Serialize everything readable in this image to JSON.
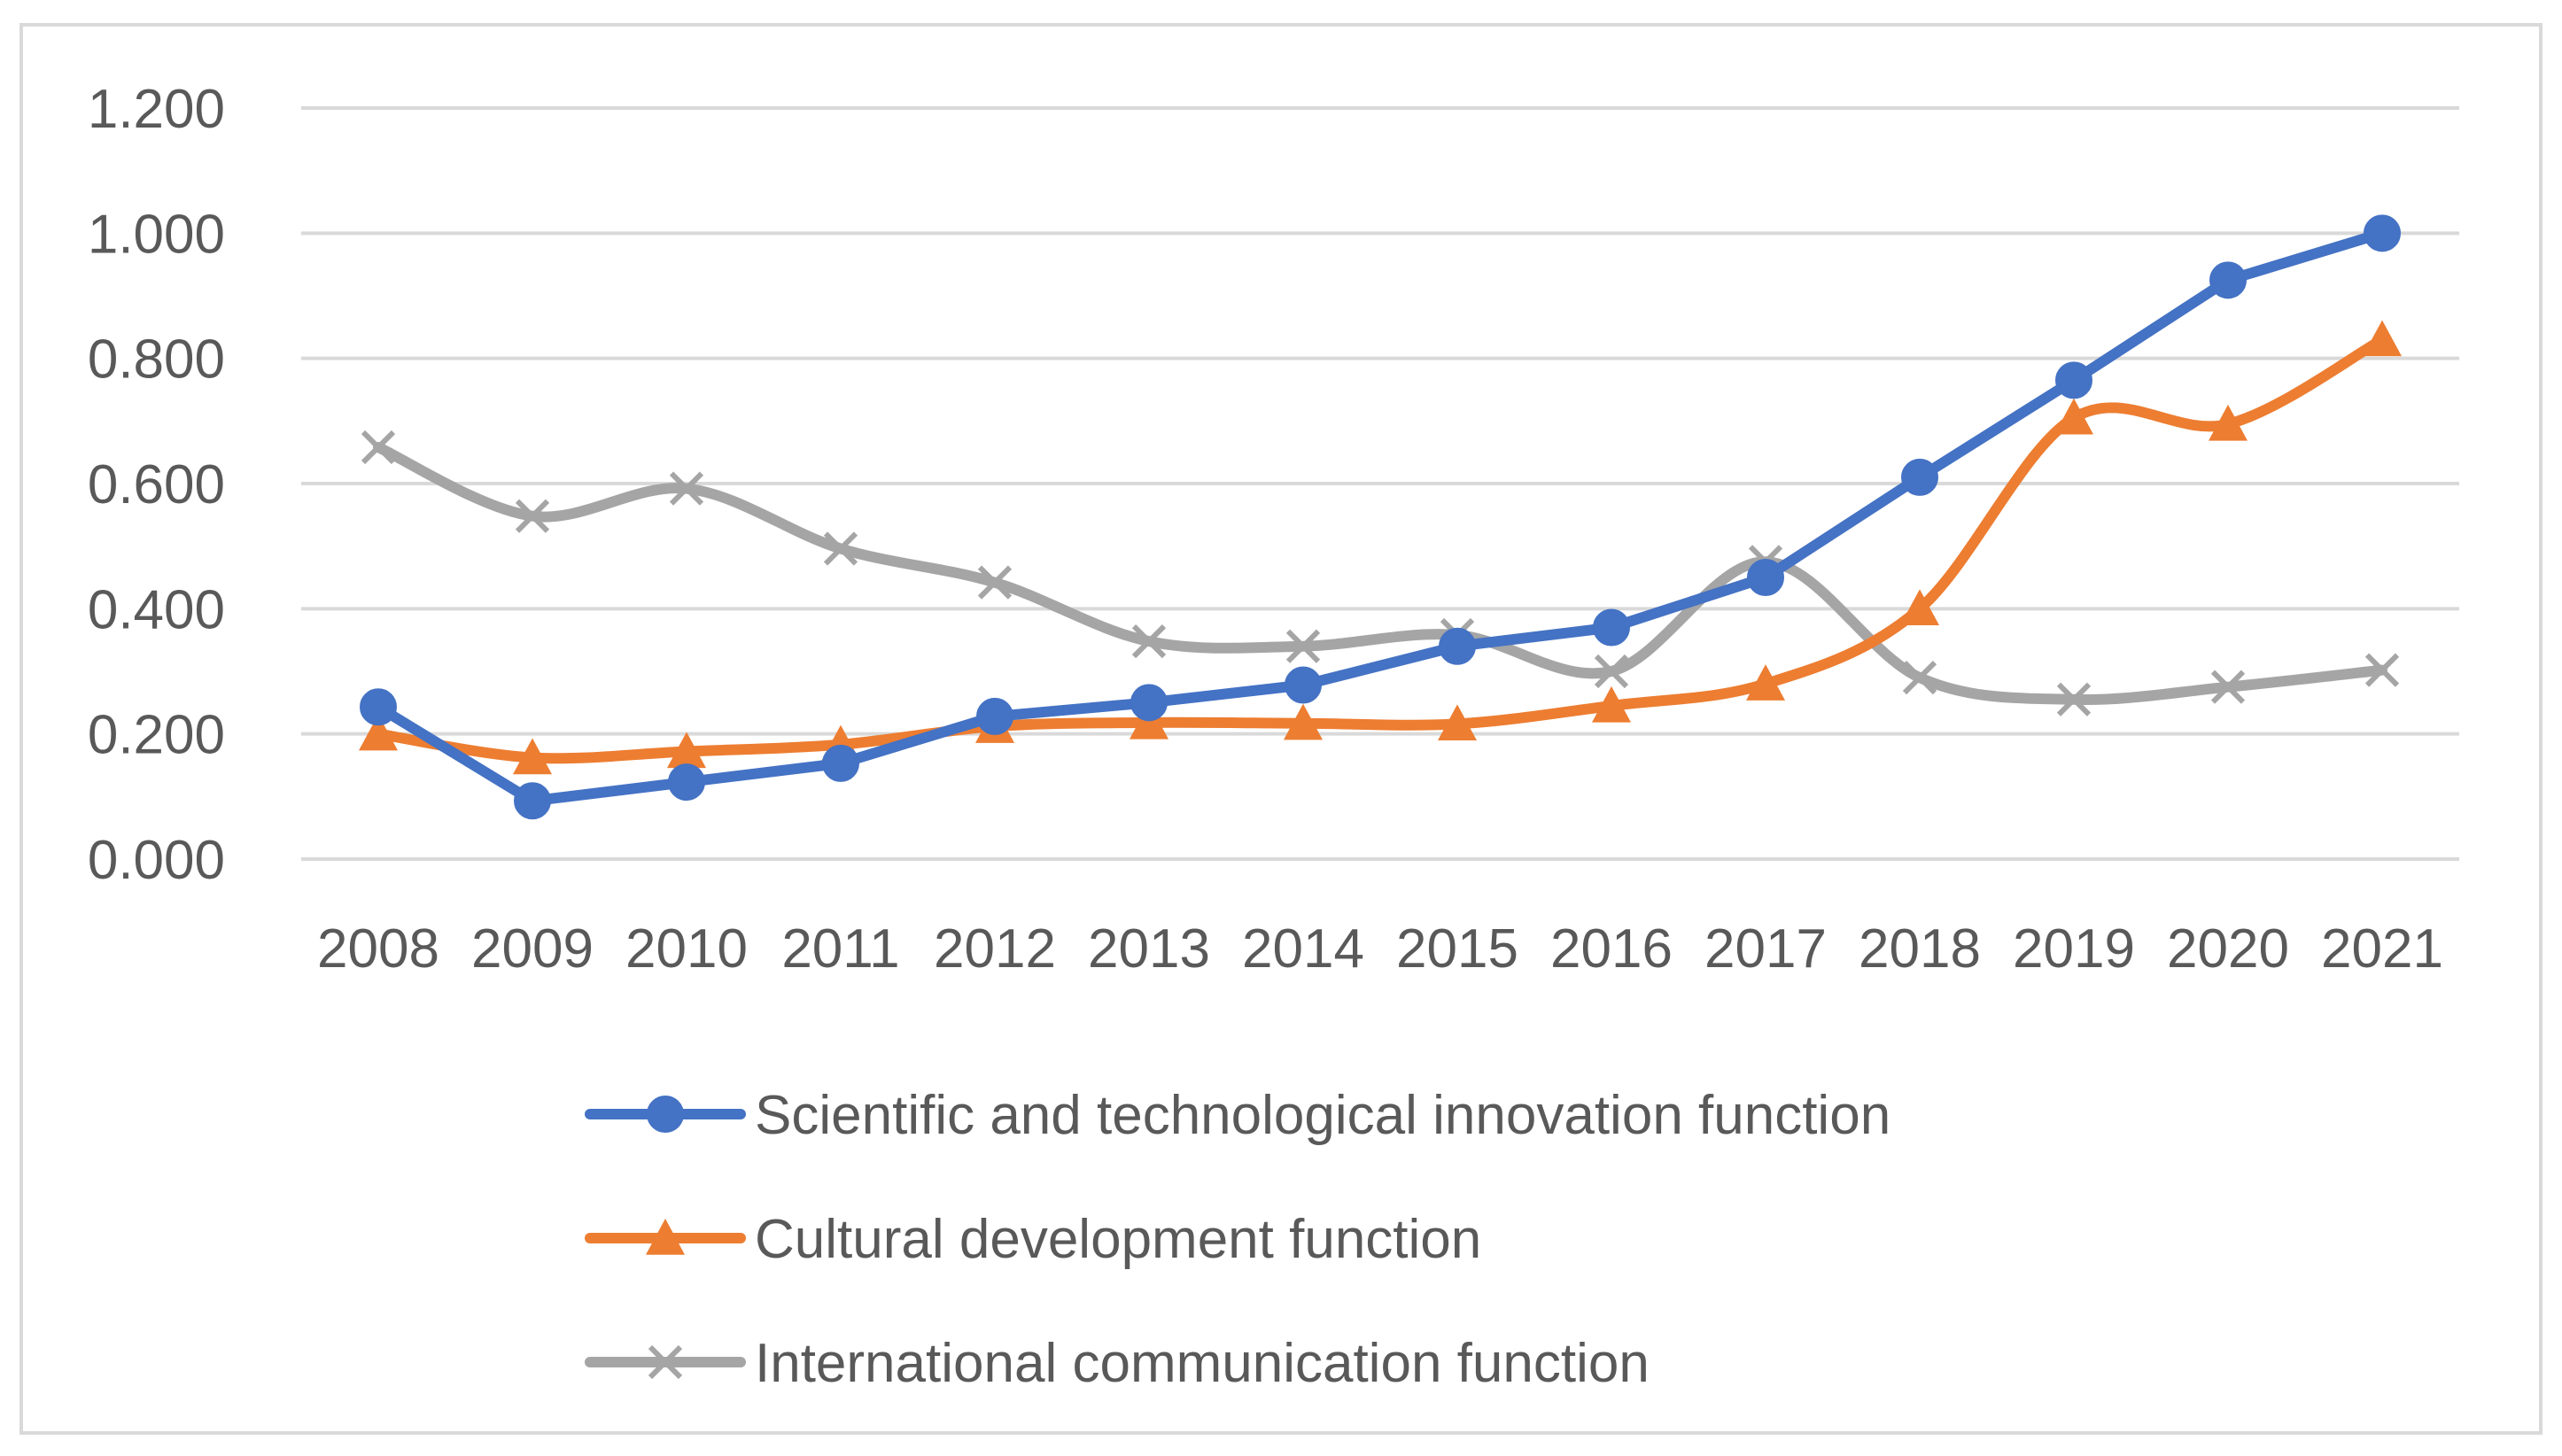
{
  "chart_data": {
    "type": "line",
    "title": "",
    "xlabel": "",
    "ylabel": "",
    "categories": [
      "2008",
      "2009",
      "2010",
      "2011",
      "2012",
      "2013",
      "2014",
      "2015",
      "2016",
      "2017",
      "2018",
      "2019",
      "2020",
      "2021"
    ],
    "ylim": [
      0,
      1.2
    ],
    "yticks": [
      "0.000",
      "0.200",
      "0.400",
      "0.600",
      "0.800",
      "1.000",
      "1.200"
    ],
    "grid": true,
    "legend_position": "bottom",
    "series": [
      {
        "name": "Scientific and technological innovation function",
        "color": "#4472c4",
        "marker": "circle",
        "smooth": false,
        "values": [
          0.243,
          0.093,
          0.123,
          0.153,
          0.228,
          0.25,
          0.278,
          0.34,
          0.37,
          0.45,
          0.61,
          0.765,
          0.925,
          1.0
        ]
      },
      {
        "name": "Cultural development function",
        "color": "#ed7d31",
        "marker": "triangle",
        "smooth": true,
        "values": [
          0.2,
          0.162,
          0.172,
          0.183,
          0.212,
          0.218,
          0.217,
          0.216,
          0.245,
          0.28,
          0.4,
          0.705,
          0.695,
          0.83
        ]
      },
      {
        "name": "International communication function",
        "color": "#a5a5a5",
        "marker": "x",
        "smooth": true,
        "values": [
          0.658,
          0.548,
          0.592,
          0.496,
          0.442,
          0.348,
          0.34,
          0.358,
          0.3,
          0.475,
          0.29,
          0.255,
          0.275,
          0.302
        ]
      }
    ]
  }
}
